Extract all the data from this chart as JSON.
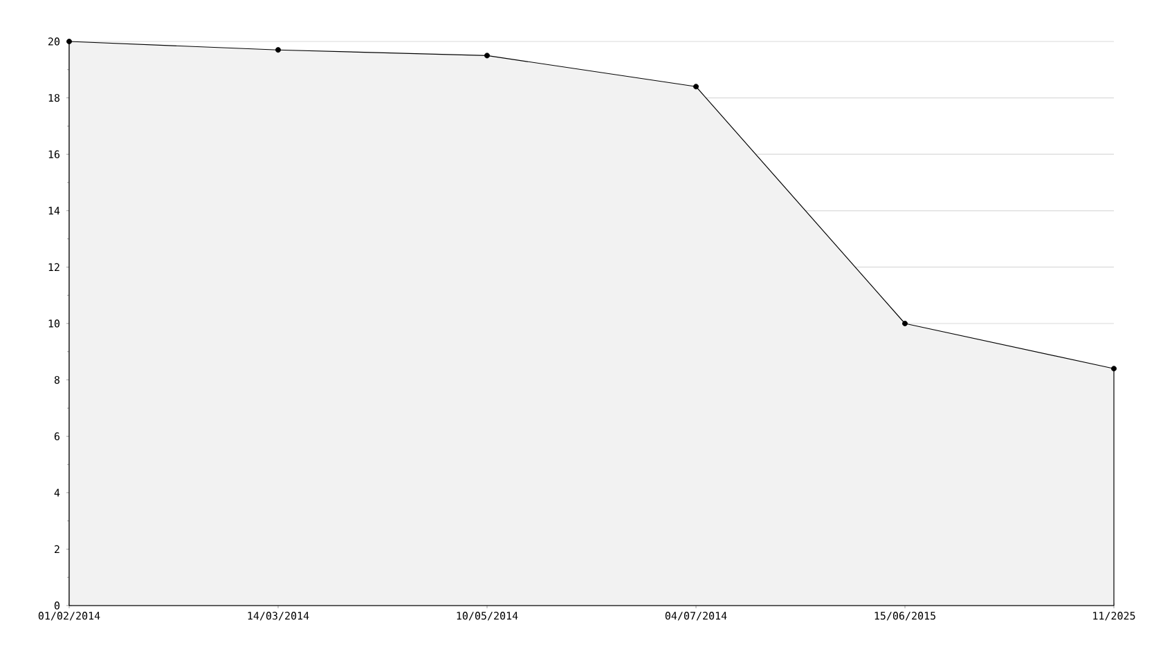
{
  "chart_data": {
    "type": "area",
    "categories": [
      "01/02/2014",
      "14/03/2014",
      "10/05/2014",
      "04/07/2014",
      "15/06/2015",
      "11/2025"
    ],
    "series": [
      {
        "color": "#f2f2f2",
        "values": [
          20,
          19.7,
          19.5,
          18.4,
          10,
          8.4
        ]
      }
    ],
    "ylim": [
      0,
      20
    ],
    "yticks": [
      0,
      2,
      4,
      6,
      8,
      10,
      12,
      14,
      16,
      18,
      20
    ],
    "grid": "y",
    "marker": "circle"
  }
}
